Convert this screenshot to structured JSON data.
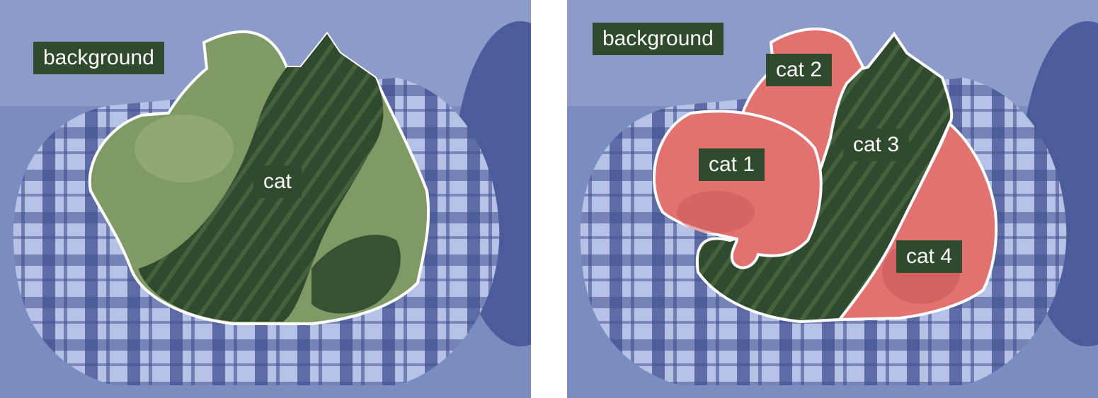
{
  "colors": {
    "background_overlay": "#6d7fb5",
    "bed_light": "#b6c1e6",
    "bed_dark": "#40508f",
    "semantic_cat": "#7f9a64",
    "instance_cat": "#e2716f",
    "cat_dark": "#2f4a2c",
    "outline": "#ffffff",
    "label_bg": "#2f4a2c"
  },
  "left_panel": {
    "labels": {
      "background": "background",
      "cat": "cat"
    }
  },
  "right_panel": {
    "labels": {
      "background": "background",
      "cat1": "cat 1",
      "cat2": "cat 2",
      "cat3": "cat 3",
      "cat4": "cat 4"
    }
  }
}
